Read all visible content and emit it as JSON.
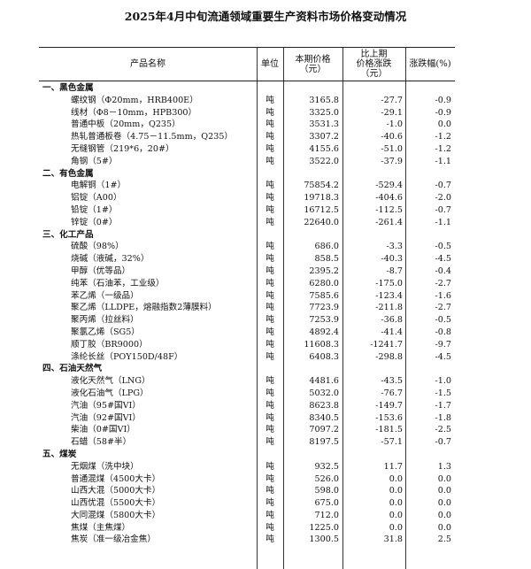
{
  "title": "2025年4月中旬流通领域重要生产资料市场价格变动情况",
  "headers": {
    "name": "产品名称",
    "unit": "单位",
    "price": "本期价格\n（元）",
    "change": "比上期\n价格涨跌\n（元）",
    "pct": "涨跌幅(%)"
  },
  "sections": [
    {
      "title": "一、黑色金属",
      "items": [
        [
          "螺纹钢（Φ20mm，HRB400E）",
          "吨",
          "3165.8",
          "-27.7",
          "-0.9"
        ],
        [
          "线材（Φ8－10mm，HPB300）",
          "吨",
          "3325.0",
          "-29.1",
          "-0.9"
        ],
        [
          "普通中板（20mm，Q235）",
          "吨",
          "3531.3",
          "-1.0",
          "0.0"
        ],
        [
          "热轧普通板卷（4.75－11.5mm，Q235）",
          "吨",
          "3307.2",
          "-40.6",
          "-1.2"
        ],
        [
          "无缝钢管（219*6，20#）",
          "吨",
          "4155.6",
          "-51.0",
          "-1.2"
        ],
        [
          "角钢（5#）",
          "吨",
          "3522.0",
          "-37.9",
          "-1.1"
        ]
      ]
    },
    {
      "title": "二、有色金属",
      "items": [
        [
          "电解铜（1#）",
          "吨",
          "75854.2",
          "-529.4",
          "-0.7"
        ],
        [
          "铝锭（A00）",
          "吨",
          "19718.3",
          "-404.6",
          "-2.0"
        ],
        [
          "铅锭（1#）",
          "吨",
          "16712.5",
          "-112.5",
          "-0.7"
        ],
        [
          "锌锭（0#）",
          "吨",
          "22640.0",
          "-261.4",
          "-1.1"
        ]
      ]
    },
    {
      "title": "三、化工产品",
      "items": [
        [
          "硫酸（98%）",
          "吨",
          "686.0",
          "-3.3",
          "-0.5"
        ],
        [
          "烧碱（液碱，32%）",
          "吨",
          "858.5",
          "-40.3",
          "-4.5"
        ],
        [
          "甲醇（优等品）",
          "吨",
          "2395.2",
          "-8.7",
          "-0.4"
        ],
        [
          "纯苯（石油苯，工业级）",
          "吨",
          "6280.0",
          "-175.0",
          "-2.7"
        ],
        [
          "苯乙烯（一级品）",
          "吨",
          "7585.6",
          "-123.4",
          "-1.6"
        ],
        [
          "聚乙烯（LLDPE，熔融指数2薄膜料）",
          "吨",
          "7723.9",
          "-211.8",
          "-2.7"
        ],
        [
          "聚丙烯（拉丝料）",
          "吨",
          "7253.9",
          "-36.8",
          "-0.5"
        ],
        [
          "聚氯乙烯（SG5）",
          "吨",
          "4892.4",
          "-41.4",
          "-0.8"
        ],
        [
          "顺丁胶（BR9000）",
          "吨",
          "11608.3",
          "-1241.7",
          "-9.7"
        ],
        [
          "涤纶长丝（POY150D/48F）",
          "吨",
          "6408.3",
          "-298.8",
          "-4.5"
        ]
      ]
    },
    {
      "title": "四、石油天然气",
      "items": [
        [
          "液化天然气（LNG）",
          "吨",
          "4481.6",
          "-43.5",
          "-1.0"
        ],
        [
          "液化石油气（LPG）",
          "吨",
          "5032.0",
          "-76.7",
          "-1.5"
        ],
        [
          "汽油（95#国VI）",
          "吨",
          "8623.8",
          "-149.7",
          "-1.7"
        ],
        [
          "汽油（92#国VI）",
          "吨",
          "8340.5",
          "-153.6",
          "-1.8"
        ],
        [
          "柴油（0#国VI）",
          "吨",
          "7097.2",
          "-181.5",
          "-2.5"
        ],
        [
          "石蜡（58#半）",
          "吨",
          "8197.5",
          "-57.1",
          "-0.7"
        ]
      ]
    },
    {
      "title": "五、煤炭",
      "items": [
        [
          "无烟煤（洗中块）",
          "吨",
          "932.5",
          "11.7",
          "1.3"
        ],
        [
          "普通混煤（4500大卡）",
          "吨",
          "526.0",
          "0.0",
          "0.0"
        ],
        [
          "山西大混（5000大卡）",
          "吨",
          "598.0",
          "0.0",
          "0.0"
        ],
        [
          "山西优混（5500大卡）",
          "吨",
          "675.0",
          "0.0",
          "0.0"
        ],
        [
          "大同混煤（5800大卡）",
          "吨",
          "712.0",
          "0.0",
          "0.0"
        ],
        [
          "焦煤（主焦煤）",
          "吨",
          "1225.0",
          "0.0",
          "0.0"
        ],
        [
          "焦炭（准一级冶金焦）",
          "吨",
          "1300.5",
          "31.8",
          "2.5"
        ]
      ]
    }
  ]
}
